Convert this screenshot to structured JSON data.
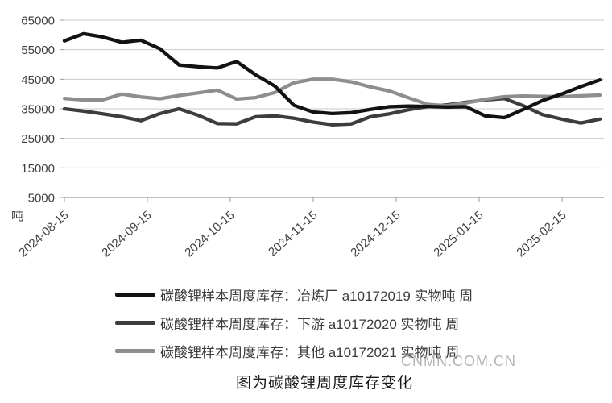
{
  "chart_data": {
    "type": "line",
    "title": "",
    "ylabel": "吨",
    "ylim": [
      5000,
      65000
    ],
    "yticks": [
      65000,
      55000,
      45000,
      35000,
      25000,
      15000,
      5000
    ],
    "grid": true,
    "legend_position": "bottom",
    "xticks": [
      "2024-08-15",
      "2024-09-15",
      "2024-10-15",
      "2024-11-15",
      "2024-12-15",
      "2025-01-15",
      "2025-02-15"
    ],
    "x_dates": [
      "2024-08-15",
      "2024-08-22",
      "2024-08-29",
      "2024-09-05",
      "2024-09-12",
      "2024-09-19",
      "2024-09-26",
      "2024-10-03",
      "2024-10-10",
      "2024-10-17",
      "2024-10-24",
      "2024-10-31",
      "2024-11-07",
      "2024-11-14",
      "2024-11-21",
      "2024-11-28",
      "2024-12-05",
      "2024-12-12",
      "2024-12-19",
      "2024-12-26",
      "2025-01-02",
      "2025-01-09",
      "2025-01-16",
      "2025-01-23",
      "2025-01-30",
      "2025-02-06",
      "2025-02-13",
      "2025-02-20",
      "2025-02-27"
    ],
    "series": [
      {
        "name": "碳酸锂样本周度库存：冶炼厂 a10172019 实物吨 周",
        "color": "#121212",
        "values": [
          58000,
          60400,
          59300,
          57500,
          58200,
          55300,
          49800,
          49200,
          48800,
          51000,
          46500,
          42700,
          36200,
          33900,
          33400,
          33700,
          34800,
          35700,
          35900,
          35800,
          35600,
          35700,
          32600,
          32000,
          34800,
          37800,
          40000,
          42500,
          44800
        ]
      },
      {
        "name": "碳酸锂样本周度库存：下游 a10172020 实物吨 周",
        "color": "#3d3d3d",
        "values": [
          35000,
          34200,
          33300,
          32300,
          31000,
          33400,
          35000,
          32800,
          30000,
          29900,
          32300,
          32600,
          31800,
          30500,
          29600,
          29900,
          32300,
          33300,
          34700,
          35800,
          36300,
          37200,
          38000,
          38500,
          36000,
          33000,
          31500,
          30200,
          31500
        ]
      },
      {
        "name": "碳酸锂样本周度库存：其他 a10172021 实物吨 周",
        "color": "#8e8e8e",
        "values": [
          38500,
          38000,
          38000,
          40000,
          39000,
          38400,
          39500,
          40400,
          41300,
          38300,
          38800,
          40500,
          43800,
          45000,
          45000,
          44100,
          42400,
          41000,
          38700,
          36500,
          36000,
          37000,
          38200,
          39100,
          39300,
          39200,
          39100,
          39400,
          39650
        ]
      }
    ],
    "axis_color": "#9b9b9b",
    "gridline_color": "#c9c9c9"
  },
  "caption": "图为碳酸锂周度库存变化",
  "watermark": "CNMN.COM.CN"
}
